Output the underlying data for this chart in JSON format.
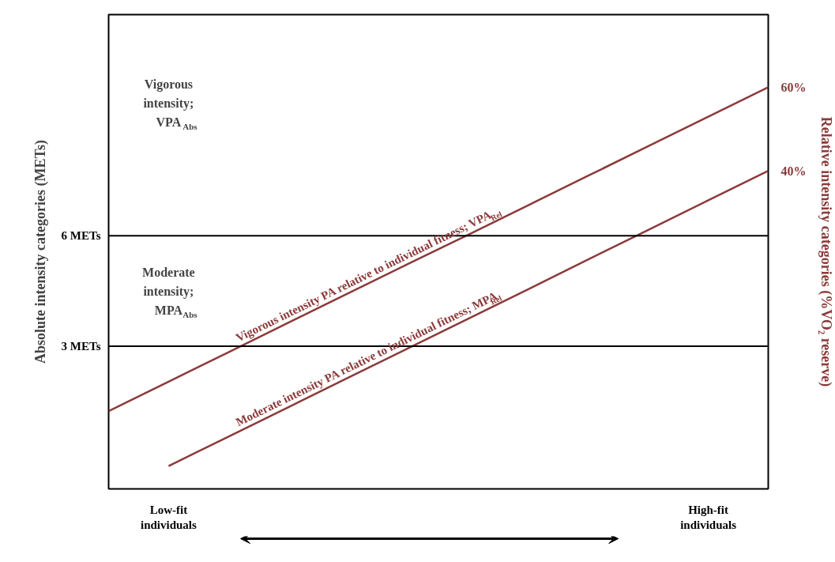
{
  "chart_data": {
    "type": "line",
    "ylabel": "Absolute intensity categories (METs)",
    "y2label": "Relative intensity categories (%VO₂ reserve)",
    "categories": [
      null,
      "Low-fit individuals",
      null,
      null,
      null,
      null,
      null,
      null,
      null,
      null,
      "High-fit individuals",
      null
    ],
    "ylim": [
      -0.87,
      12
    ],
    "yticks": [
      {
        "value": 3,
        "label": "3 METs"
      },
      {
        "value": 6,
        "label": "6 METs"
      }
    ],
    "series": [
      {
        "name": "Vigorous intensity PA relative to individual fitness; VPA$_{Rel}$",
        "color": "#8b3a3a",
        "values": [
          1.24,
          2.04,
          2.84,
          3.64,
          4.44,
          5.24,
          6.03,
          6.83,
          7.63,
          8.43,
          9.23,
          10.03
        ]
      },
      {
        "name": "Moderate intensity PA relative to individual fitness; MPA$_{Rel}$",
        "color": "#8b3a3a",
        "values": [
          null,
          -0.25,
          0.55,
          1.35,
          2.15,
          2.95,
          3.75,
          4.55,
          5.36,
          6.16,
          6.96,
          7.76
        ]
      }
    ],
    "ref_lines": [
      {
        "axis": "y",
        "value": 3,
        "color": "#000000"
      },
      {
        "axis": "y",
        "value": 6,
        "color": "#000000"
      }
    ],
    "annotations": [
      "Vigorous intensity; VPA$_{Abs}$",
      "Moderate intensity; MPA$_{Abs}$",
      "60%",
      "40%"
    ],
    "grid": false,
    "marker": "none",
    "line_style": "solid"
  }
}
